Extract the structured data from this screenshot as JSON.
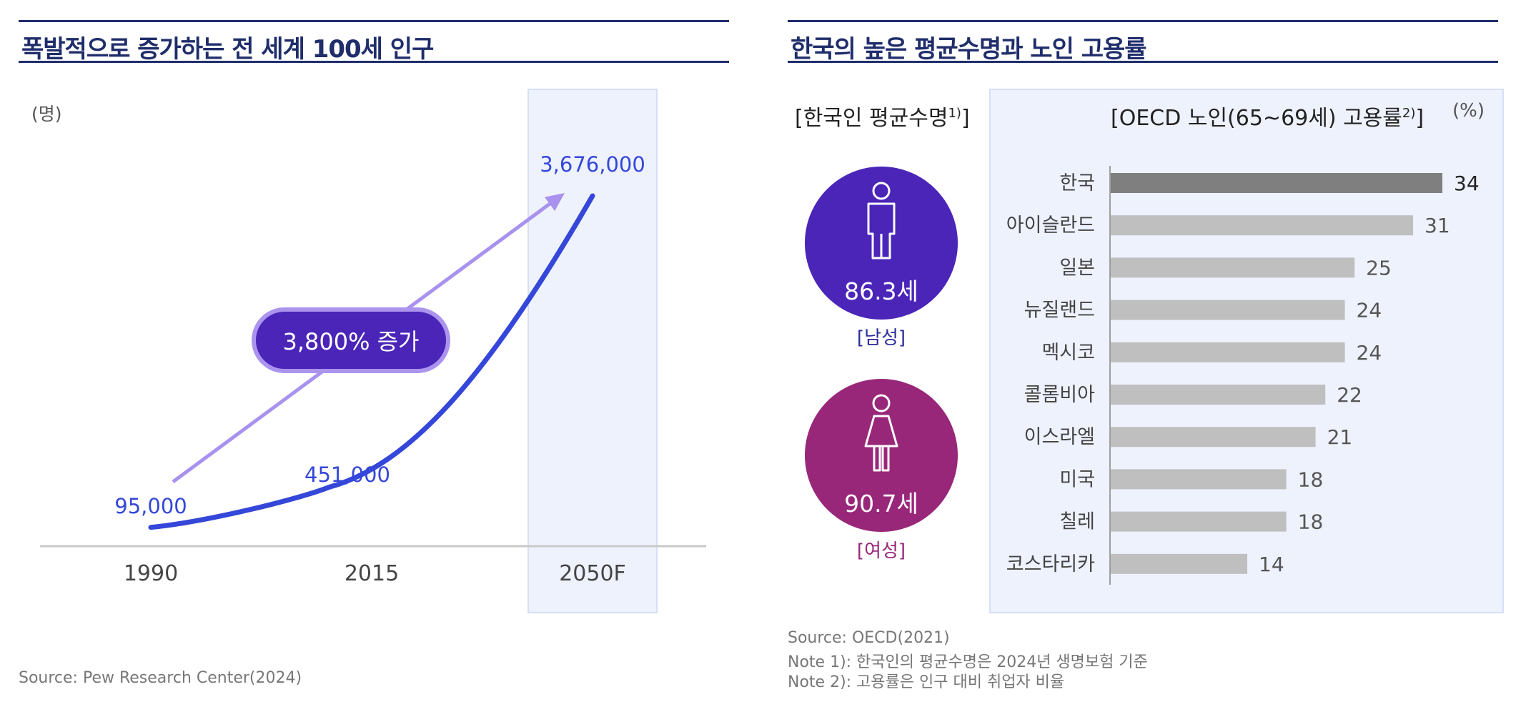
{
  "left": {
    "title": "폭발적으로 증가하는 전 세계 100세 인구",
    "unit": "(명)",
    "badge": "3,800% 증가",
    "source": "Source: Pew Research Center(2024)"
  },
  "right": {
    "title": "한국의 높은 평균수명과 노인 고용률",
    "life_header": "[한국인 평균수명",
    "life_header_note": "1)",
    "life_header_close": "]",
    "male": {
      "value": "86.3세",
      "label": "[남성]"
    },
    "female": {
      "value": "90.7세",
      "label": "[여성]"
    },
    "emp_header": "[OECD 노인(65~69세) 고용률",
    "emp_header_note": "2)",
    "emp_header_close": "]",
    "unit": "(%)",
    "source": "Source: OECD(2021)",
    "note1": "Note 1): 한국인의 평균수명은 2024년 생명보험 기준",
    "note2": "Note 2): 고용률은 인구 대비 취업자 비율"
  },
  "colors": {
    "navy": "#1f2d6b",
    "line_blue": "#3547d9",
    "arrow_lavender": "#a891ef",
    "male_circle": "#4a25b8",
    "female_circle": "#98277a",
    "korea_bar": "#7f7f7f",
    "other_bar": "#bfbfbf"
  },
  "chart_data": [
    {
      "type": "line",
      "title": "폭발적으로 증가하는 전 세계 100세 인구",
      "ylabel": "(명)",
      "categories": [
        "1990",
        "2015",
        "2050F"
      ],
      "values": [
        95000,
        451000,
        3676000
      ],
      "value_labels": [
        "95,000",
        "451,000",
        "3,676,000"
      ],
      "highlight_category": "2050F",
      "annotation": "3,800% 증가"
    },
    {
      "type": "bar",
      "orientation": "horizontal",
      "title": "[OECD 노인(65~69세) 고용률2)]",
      "unit": "(%)",
      "categories": [
        "한국",
        "아이슬란드",
        "일본",
        "뉴질랜드",
        "멕시코",
        "콜롬비아",
        "이스라엘",
        "미국",
        "칠레",
        "코스타리카"
      ],
      "values": [
        34,
        31,
        25,
        24,
        24,
        22,
        21,
        18,
        18,
        14
      ],
      "xlim": [
        0,
        34
      ]
    }
  ]
}
